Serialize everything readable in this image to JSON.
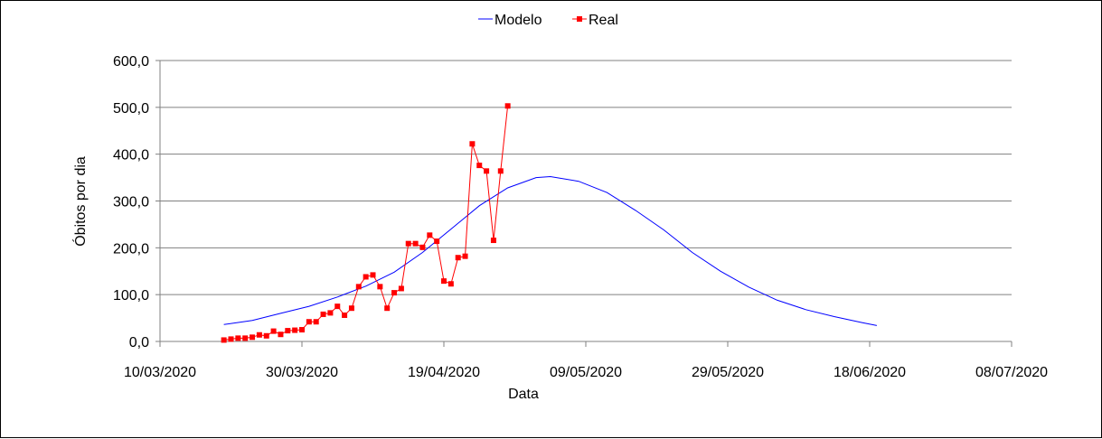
{
  "chart_data": {
    "type": "line",
    "title": "",
    "xlabel": "Data",
    "ylabel": "Óbitos por dia",
    "x_tick_labels": [
      "10/03/2020",
      "30/03/2020",
      "19/04/2020",
      "09/05/2020",
      "29/05/2020",
      "18/06/2020",
      "08/07/2020"
    ],
    "x_ticks": [
      "2020-03-10",
      "2020-03-30",
      "2020-04-19",
      "2020-05-09",
      "2020-05-29",
      "2020-06-18",
      "2020-07-08"
    ],
    "xlim": [
      "2020-03-10",
      "2020-07-08"
    ],
    "y_tick_labels": [
      "0,0",
      "100,0",
      "200,0",
      "300,0",
      "400,0",
      "500,0",
      "600,0"
    ],
    "y_ticks": [
      0,
      100,
      200,
      300,
      400,
      500,
      600
    ],
    "ylim": [
      0,
      600
    ],
    "grid": "horizontal",
    "legend": "top",
    "series": [
      {
        "name": "Modelo",
        "color": "#0000ff",
        "marker": "none",
        "points": [
          [
            "2020-03-19",
            36
          ],
          [
            "2020-03-23",
            45
          ],
          [
            "2020-03-27",
            60
          ],
          [
            "2020-03-31",
            75
          ],
          [
            "2020-04-04",
            95
          ],
          [
            "2020-04-08",
            118
          ],
          [
            "2020-04-12",
            148
          ],
          [
            "2020-04-16",
            190
          ],
          [
            "2020-04-20",
            240
          ],
          [
            "2020-04-24",
            290
          ],
          [
            "2020-04-28",
            328
          ],
          [
            "2020-05-02",
            350
          ],
          [
            "2020-05-04",
            352
          ],
          [
            "2020-05-08",
            342
          ],
          [
            "2020-05-12",
            318
          ],
          [
            "2020-05-16",
            280
          ],
          [
            "2020-05-20",
            238
          ],
          [
            "2020-05-24",
            190
          ],
          [
            "2020-05-28",
            150
          ],
          [
            "2020-06-01",
            116
          ],
          [
            "2020-06-05",
            88
          ],
          [
            "2020-06-09",
            68
          ],
          [
            "2020-06-13",
            53
          ],
          [
            "2020-06-17",
            40
          ],
          [
            "2020-06-19",
            34
          ]
        ]
      },
      {
        "name": "Real",
        "color": "#ff0000",
        "marker": "square",
        "points": [
          [
            "2020-03-19",
            3
          ],
          [
            "2020-03-20",
            5
          ],
          [
            "2020-03-21",
            7
          ],
          [
            "2020-03-22",
            7
          ],
          [
            "2020-03-23",
            9
          ],
          [
            "2020-03-24",
            14
          ],
          [
            "2020-03-25",
            12
          ],
          [
            "2020-03-26",
            22
          ],
          [
            "2020-03-27",
            15
          ],
          [
            "2020-03-28",
            23
          ],
          [
            "2020-03-29",
            24
          ],
          [
            "2020-03-30",
            25
          ],
          [
            "2020-03-31",
            42
          ],
          [
            "2020-04-01",
            42
          ],
          [
            "2020-04-02",
            58
          ],
          [
            "2020-04-03",
            61
          ],
          [
            "2020-04-04",
            75
          ],
          [
            "2020-04-05",
            56
          ],
          [
            "2020-04-06",
            71
          ],
          [
            "2020-04-07",
            117
          ],
          [
            "2020-04-08",
            138
          ],
          [
            "2020-04-09",
            142
          ],
          [
            "2020-04-10",
            117
          ],
          [
            "2020-04-11",
            71
          ],
          [
            "2020-04-12",
            104
          ],
          [
            "2020-04-13",
            113
          ],
          [
            "2020-04-14",
            209
          ],
          [
            "2020-04-15",
            209
          ],
          [
            "2020-04-16",
            201
          ],
          [
            "2020-04-17",
            227
          ],
          [
            "2020-04-18",
            214
          ],
          [
            "2020-04-19",
            129
          ],
          [
            "2020-04-20",
            123
          ],
          [
            "2020-04-21",
            179
          ],
          [
            "2020-04-22",
            182
          ],
          [
            "2020-04-23",
            422
          ],
          [
            "2020-04-24",
            376
          ],
          [
            "2020-04-25",
            364
          ],
          [
            "2020-04-26",
            216
          ],
          [
            "2020-04-27",
            364
          ],
          [
            "2020-04-28",
            503
          ]
        ]
      }
    ]
  }
}
